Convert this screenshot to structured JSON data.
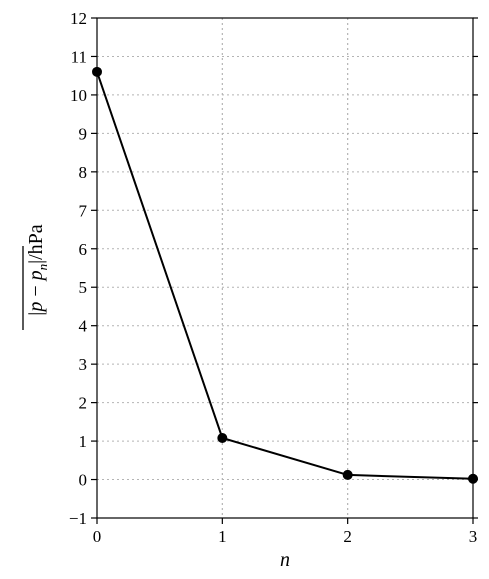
{
  "chart_data": {
    "type": "line",
    "title": "",
    "xlabel": "n",
    "ylabel": "|p − p_n|/hPa",
    "ylabel_parts": {
      "bar_left": "|",
      "p": "p",
      "minus": " − ",
      "pn": "p",
      "sub": "n",
      "bar_right": "|",
      "unit": "/hPa"
    },
    "x": [
      0,
      1,
      2,
      3
    ],
    "xlim": [
      0,
      3
    ],
    "ylim": [
      -1,
      12
    ],
    "x_ticks": [
      0,
      1,
      2,
      3
    ],
    "y_ticks": [
      -1,
      0,
      1,
      2,
      3,
      4,
      5,
      6,
      7,
      8,
      9,
      10,
      11,
      12
    ],
    "x_tick_labels": [
      "0",
      "1",
      "2",
      "3"
    ],
    "y_tick_labels": [
      "−1",
      "0",
      "1",
      "2",
      "3",
      "4",
      "5",
      "6",
      "7",
      "8",
      "9",
      "10",
      "11",
      "12"
    ],
    "series": [
      {
        "values": [
          10.6,
          1.08,
          0.12,
          0.02
        ],
        "color": "#000000",
        "marker": "circle"
      }
    ],
    "grid": true,
    "grid_style": "dotted",
    "grid_color": "#b4b4b4",
    "axis_color": "#000000"
  }
}
